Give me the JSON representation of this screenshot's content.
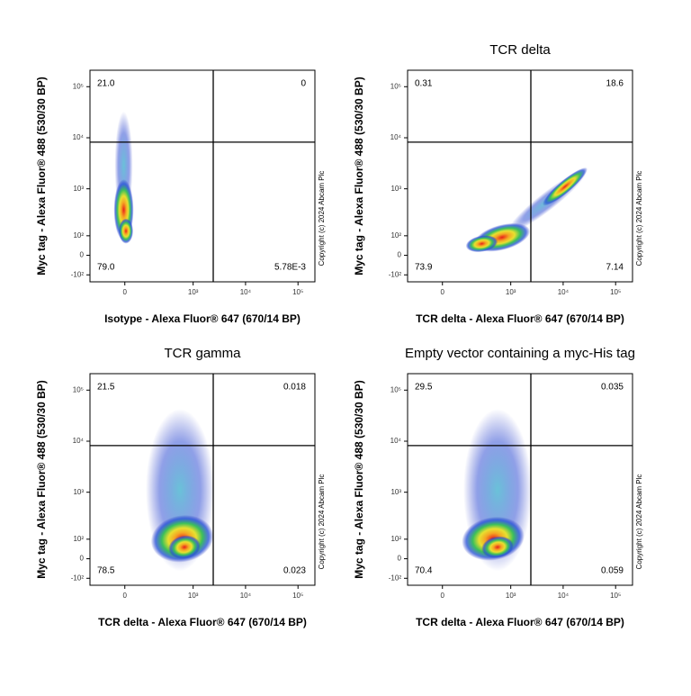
{
  "chart_data": [
    {
      "type": "scatter",
      "x_label": "Isotype - Alexa Fluor® 647 (670/14 BP)",
      "y_label": "Myc tag - Alexa Fluor® 488 (530/30 BP)",
      "copyright": "Copyright (c) 2024 Abcam Plc",
      "values": [
        21.0,
        0,
        79.0,
        0.00578
      ],
      "value_labels": [
        "21.0",
        "0",
        "79.0",
        "5.78E-3"
      ],
      "xlim": [
        -220,
        210000
      ],
      "ylim": [
        -150,
        210000
      ],
      "xticks": [
        0,
        {
          "value": 1000,
          "label": "10³"
        },
        {
          "value": 10000,
          "label": "10⁴"
        },
        {
          "value": 100000,
          "label": "10⁵"
        }
      ],
      "yticks": [
        {
          "value": 100000,
          "label": "10⁵"
        },
        {
          "value": 10000,
          "label": "10⁴"
        },
        {
          "value": 1000,
          "label": "10³"
        },
        {
          "value": 100,
          "label": "10²"
        },
        0,
        {
          "value": -100,
          "label": "-10²"
        }
      ]
    },
    {
      "type": "scatter",
      "title": "TCR delta",
      "x_label": "TCR delta - Alexa Fluor® 647 (670/14 BP)",
      "y_label": "Myc tag - Alexa Fluor® 488 (530/30 BP)",
      "copyright": "Copyright (c) 2024 Abcam Plc",
      "values": [
        0.31,
        18.6,
        73.9,
        7.14
      ],
      "value_labels": [
        "0.31",
        "18.6",
        "73.9",
        "7.14"
      ],
      "xlim": [
        -220,
        210000
      ],
      "ylim": [
        -150,
        210000
      ],
      "xticks": [
        0,
        {
          "value": 1000,
          "label": "10³"
        },
        {
          "value": 10000,
          "label": "10⁴"
        },
        {
          "value": 100000,
          "label": "10⁵"
        }
      ],
      "yticks": [
        {
          "value": 100000,
          "label": "10⁵"
        },
        {
          "value": 10000,
          "label": "10⁴"
        },
        {
          "value": 1000,
          "label": "10³"
        },
        {
          "value": 100,
          "label": "10²"
        },
        0,
        {
          "value": -100,
          "label": "-10²"
        }
      ]
    },
    {
      "type": "scatter",
      "title": "TCR gamma",
      "x_label": "TCR delta - Alexa Fluor® 647 (670/14 BP)",
      "y_label": "Myc tag - Alexa Fluor® 488 (530/30 BP)",
      "copyright": "Copyright (c) 2024 Abcam Plc",
      "values": [
        21.5,
        0.018,
        78.5,
        0.023
      ],
      "value_labels": [
        "21.5",
        "0.018",
        "78.5",
        "0.023"
      ],
      "xlim": [
        -220,
        210000
      ],
      "ylim": [
        -150,
        210000
      ],
      "xticks": [
        0,
        {
          "value": 1000,
          "label": "10³"
        },
        {
          "value": 10000,
          "label": "10⁴"
        },
        {
          "value": 100000,
          "label": "10⁵"
        }
      ],
      "yticks": [
        {
          "value": 100000,
          "label": "10⁵"
        },
        {
          "value": 10000,
          "label": "10⁴"
        },
        {
          "value": 1000,
          "label": "10³"
        },
        {
          "value": 100,
          "label": "10²"
        },
        0,
        {
          "value": -100,
          "label": "-10²"
        }
      ]
    },
    {
      "type": "scatter",
      "title": "Empty vector containing a myc-His tag",
      "x_label": "TCR delta - Alexa Fluor® 647 (670/14 BP)",
      "y_label": "Myc tag - Alexa Fluor® 488 (530/30 BP)",
      "copyright": "Copyright (c) 2024 Abcam Plc",
      "values": [
        29.5,
        0.035,
        70.4,
        0.059
      ],
      "value_labels": [
        "29.5",
        "0.035",
        "70.4",
        "0.059"
      ],
      "xlim": [
        -220,
        210000
      ],
      "ylim": [
        -150,
        210000
      ],
      "xticks": [
        0,
        {
          "value": 1000,
          "label": "10³"
        },
        {
          "value": 10000,
          "label": "10⁴"
        },
        {
          "value": 100000,
          "label": "10⁵"
        }
      ],
      "yticks": [
        {
          "value": 100000,
          "label": "10⁵"
        },
        {
          "value": 10000,
          "label": "10⁴"
        },
        {
          "value": 1000,
          "label": "10³"
        },
        {
          "value": 100,
          "label": "10²"
        },
        0,
        {
          "value": -100,
          "label": "-10²"
        }
      ]
    }
  ]
}
